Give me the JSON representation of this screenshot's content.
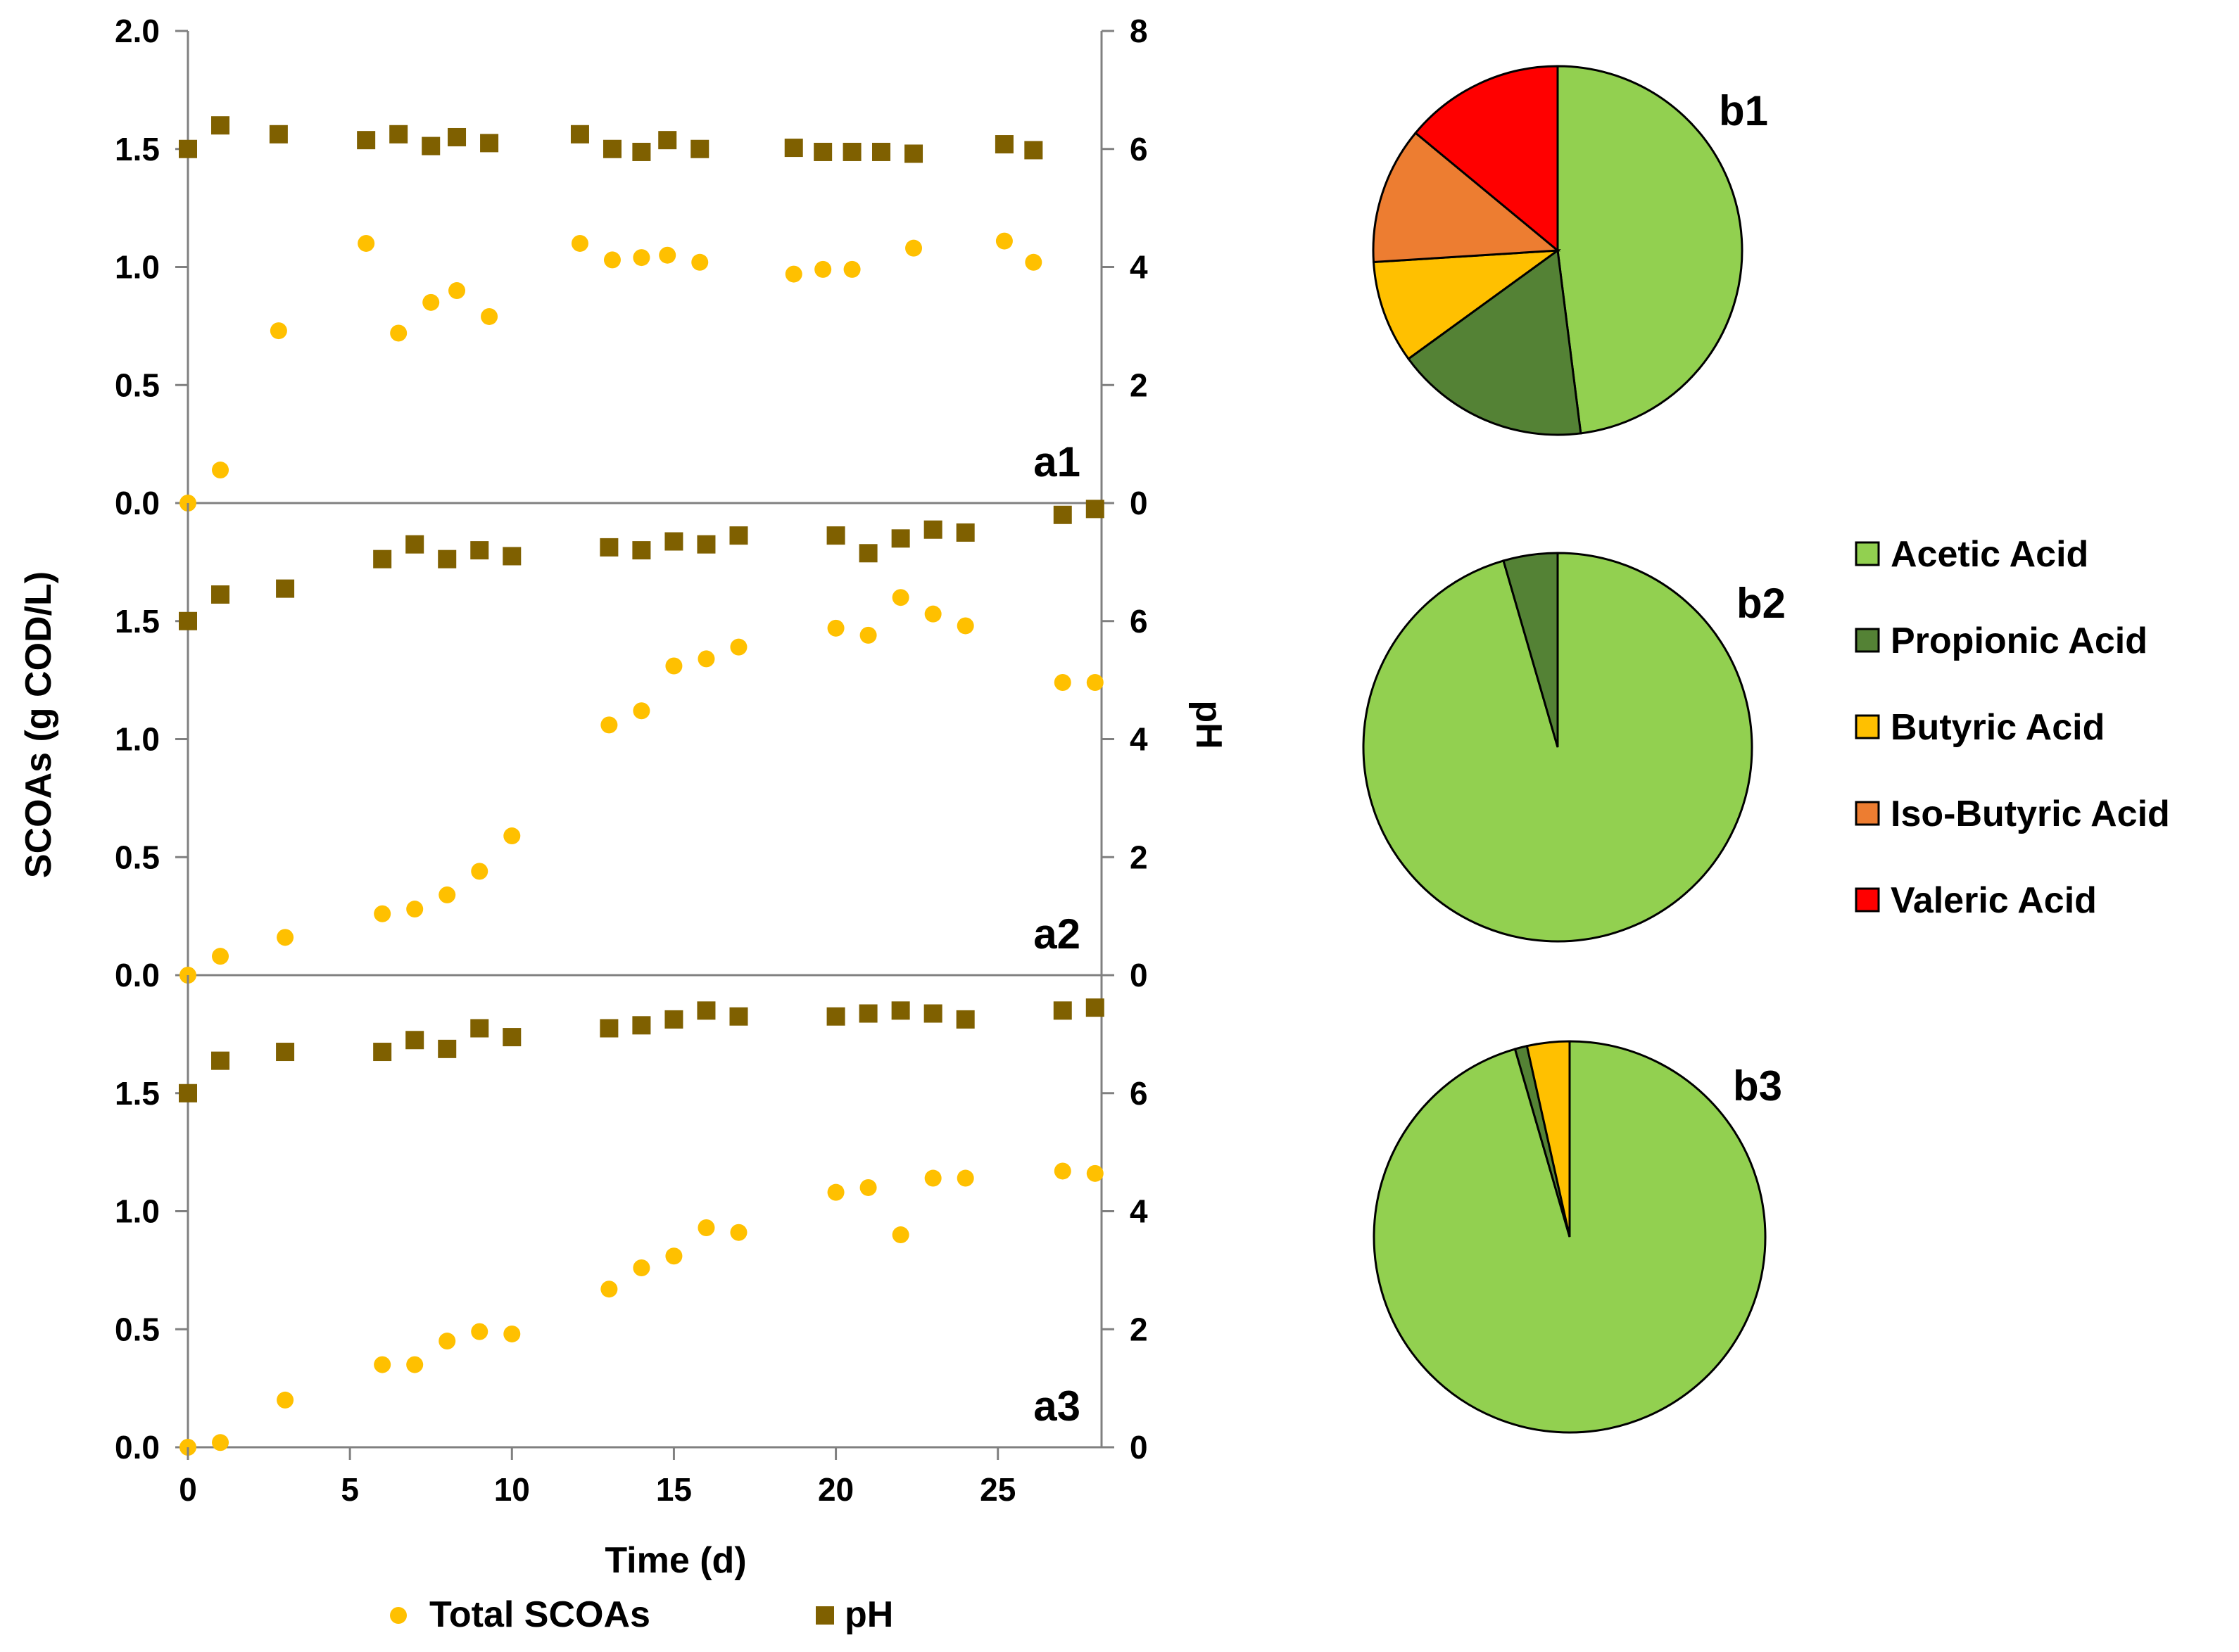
{
  "colors": {
    "scoa": "#ffc000",
    "ph": "#7f6000",
    "axis": "#808080",
    "acetic": "#92d050",
    "propionic": "#548235",
    "butyric": "#ffc000",
    "isobutyric": "#ed7d31",
    "valeric": "#ff0000"
  },
  "chart_data": [
    {
      "type": "scatter",
      "panel_label": "a1",
      "x_ticks": [
        "0",
        "5",
        "10",
        "15",
        "20",
        "25"
      ],
      "xlim": [
        0,
        28.2
      ],
      "ylim_left": [
        0,
        2
      ],
      "yticks_left": [
        "0.0",
        "0.5",
        "1.0",
        "1.5",
        "2.0"
      ],
      "ylim_right": [
        0,
        8
      ],
      "yticks_right": [
        "0",
        "2",
        "4",
        "6",
        "8"
      ],
      "series": [
        {
          "name": "Total SCOAs",
          "axis": "left",
          "marker": "circle",
          "x": [
            0,
            1,
            2.8,
            5.5,
            6.5,
            7.5,
            8.3,
            9.3,
            12.1,
            13.1,
            14,
            14.8,
            15.8,
            18.7,
            19.6,
            20.5,
            22.4,
            25.2,
            26.1
          ],
          "y": [
            0.0,
            0.14,
            0.73,
            1.1,
            0.72,
            0.85,
            0.9,
            0.79,
            1.1,
            1.03,
            1.04,
            1.05,
            1.02,
            0.97,
            0.99,
            0.99,
            1.08,
            1.11,
            1.02
          ]
        },
        {
          "name": "pH",
          "axis": "right",
          "marker": "square",
          "x": [
            0,
            1,
            2.8,
            5.5,
            6.5,
            7.5,
            8.3,
            9.3,
            12.1,
            13.1,
            14,
            14.8,
            15.8,
            18.7,
            19.6,
            20.5,
            21.4,
            22.4,
            25.2,
            26.1
          ],
          "y": [
            6.0,
            6.4,
            6.25,
            6.15,
            6.25,
            6.05,
            6.2,
            6.1,
            6.25,
            6.0,
            5.95,
            6.15,
            6.0,
            6.02,
            5.95,
            5.95,
            5.95,
            5.92,
            6.08,
            5.98
          ]
        }
      ]
    },
    {
      "type": "scatter",
      "panel_label": "a2",
      "x_ticks": [
        "0",
        "5",
        "10",
        "15",
        "20",
        "25"
      ],
      "xlim": [
        0,
        28.2
      ],
      "ylim_left": [
        0,
        2
      ],
      "yticks_left": [
        "0.0",
        "0.5",
        "1.0",
        "1.5"
      ],
      "ylim_right": [
        0,
        8
      ],
      "yticks_right": [
        "0",
        "2",
        "4",
        "6"
      ],
      "series": [
        {
          "name": "Total SCOAs",
          "axis": "left",
          "marker": "circle",
          "x": [
            0,
            1,
            3,
            6,
            7,
            8,
            9,
            10,
            13,
            14,
            15,
            16,
            17,
            20,
            21,
            22,
            23,
            24,
            27,
            28
          ],
          "y": [
            0.0,
            0.08,
            0.16,
            0.26,
            0.28,
            0.34,
            0.44,
            0.59,
            1.06,
            1.12,
            1.31,
            1.34,
            1.39,
            1.47,
            1.44,
            1.6,
            1.53,
            1.48,
            1.24,
            1.24
          ]
        },
        {
          "name": "pH",
          "axis": "right",
          "marker": "square",
          "x": [
            0,
            1,
            3,
            6,
            7,
            8,
            9,
            10,
            13,
            14,
            15,
            16,
            17,
            20,
            21,
            22,
            23,
            24,
            27,
            28
          ],
          "y": [
            6.0,
            6.45,
            6.55,
            7.05,
            7.3,
            7.05,
            7.2,
            7.1,
            7.25,
            7.2,
            7.35,
            7.3,
            7.45,
            7.45,
            7.15,
            7.4,
            7.55,
            7.5,
            7.8,
            7.9
          ]
        }
      ]
    },
    {
      "type": "scatter",
      "panel_label": "a3",
      "x_ticks": [
        "0",
        "5",
        "10",
        "15",
        "20",
        "25"
      ],
      "xlim": [
        0,
        28.2
      ],
      "ylim_left": [
        0,
        2
      ],
      "yticks_left": [
        "0.0",
        "0.5",
        "1.0",
        "1.5"
      ],
      "ylim_right": [
        0,
        8
      ],
      "yticks_right": [
        "0",
        "2",
        "4",
        "6"
      ],
      "series": [
        {
          "name": "Total SCOAs",
          "axis": "left",
          "marker": "circle",
          "x": [
            0,
            1,
            3,
            6,
            7,
            8,
            9,
            10,
            13,
            14,
            15,
            16,
            17,
            20,
            21,
            22,
            23,
            24,
            27,
            28
          ],
          "y": [
            0.0,
            0.02,
            0.2,
            0.35,
            0.35,
            0.45,
            0.49,
            0.48,
            0.67,
            0.76,
            0.81,
            0.93,
            0.91,
            1.08,
            1.1,
            0.9,
            1.14,
            1.14,
            1.17,
            1.16
          ]
        },
        {
          "name": "pH",
          "axis": "right",
          "marker": "square",
          "x": [
            0,
            1,
            3,
            6,
            7,
            8,
            9,
            10,
            13,
            14,
            15,
            16,
            17,
            20,
            21,
            22,
            23,
            24,
            27,
            28
          ],
          "y": [
            6.0,
            6.55,
            6.7,
            6.7,
            6.9,
            6.75,
            7.1,
            6.95,
            7.1,
            7.15,
            7.25,
            7.4,
            7.3,
            7.3,
            7.35,
            7.4,
            7.35,
            7.25,
            7.4,
            7.45
          ]
        }
      ]
    },
    {
      "type": "pie",
      "panel_label": "b1",
      "slices": [
        {
          "label": "Acetic Acid",
          "value": 48
        },
        {
          "label": "Propionic Acid",
          "value": 17
        },
        {
          "label": "Butyric Acid",
          "value": 9
        },
        {
          "label": "Iso-Butyric Acid",
          "value": 12
        },
        {
          "label": "Valeric Acid",
          "value": 14
        }
      ]
    },
    {
      "type": "pie",
      "panel_label": "b2",
      "slices": [
        {
          "label": "Acetic Acid",
          "value": 95.5
        },
        {
          "label": "Propionic Acid",
          "value": 4.5
        }
      ]
    },
    {
      "type": "pie",
      "panel_label": "b3",
      "slices": [
        {
          "label": "Acetic Acid",
          "value": 95.5
        },
        {
          "label": "Propionic Acid",
          "value": 1
        },
        {
          "label": "Butyric Acid",
          "value": 3.5
        }
      ]
    }
  ],
  "axes": {
    "xlabel": "Time (d)",
    "ylabel_left": "SCOAs (g COD/L)",
    "ylabel_right": "pH"
  },
  "legend_markers": [
    {
      "label": "Total SCOAs",
      "marker": "circle",
      "color": "#ffc000"
    },
    {
      "label": "pH",
      "marker": "square",
      "color": "#7f6000"
    }
  ],
  "legend_pie": [
    {
      "label": "Acetic Acid",
      "color": "#92d050"
    },
    {
      "label": "Propionic Acid",
      "color": "#548235"
    },
    {
      "label": "Butyric Acid",
      "color": "#ffc000"
    },
    {
      "label": "Iso-Butyric Acid",
      "color": "#ed7d31"
    },
    {
      "label": "Valeric Acid",
      "color": "#ff0000"
    }
  ]
}
